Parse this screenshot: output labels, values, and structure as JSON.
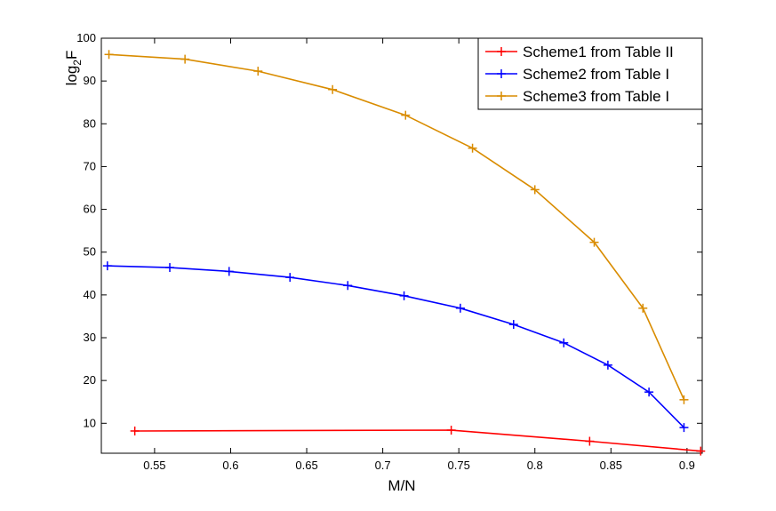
{
  "chart_data": {
    "type": "line",
    "title": "",
    "xlabel": "M/N",
    "ylabel_base": "log",
    "ylabel_sub": "2",
    "ylabel_var": "F",
    "xlim": [
      0.515,
      0.91
    ],
    "ylim": [
      3,
      100
    ],
    "xticks": [
      0.55,
      0.6,
      0.65,
      0.7,
      0.75,
      0.8,
      0.85,
      0.9
    ],
    "xtick_labels": [
      "0.55",
      "0.6",
      "0.65",
      "0.7",
      "0.75",
      "0.8",
      "0.85",
      "0.9"
    ],
    "yticks": [
      10,
      20,
      30,
      40,
      50,
      60,
      70,
      80,
      90,
      100
    ],
    "ytick_labels": [
      "10",
      "20",
      "30",
      "40",
      "50",
      "60",
      "70",
      "80",
      "90",
      "100"
    ],
    "grid": false,
    "legend_position": "top-right",
    "marker": "plus",
    "series": [
      {
        "name": "Scheme1 from Table II",
        "color": "#ff0000",
        "x": [
          0.537,
          0.745,
          0.836,
          0.909
        ],
        "y": [
          8.2,
          8.4,
          5.8,
          3.5
        ]
      },
      {
        "name": "Scheme2 from Table I",
        "color": "#0000ff",
        "x": [
          0.519,
          0.56,
          0.599,
          0.639,
          0.677,
          0.714,
          0.751,
          0.786,
          0.819,
          0.848,
          0.875,
          0.898
        ],
        "y": [
          46.8,
          46.4,
          45.5,
          44.1,
          42.2,
          39.8,
          36.9,
          33.1,
          28.8,
          23.6,
          17.3,
          9.0
        ]
      },
      {
        "name": "Scheme3 from Table I",
        "color": "#d98c00",
        "x": [
          0.52,
          0.57,
          0.618,
          0.667,
          0.715,
          0.759,
          0.8,
          0.839,
          0.871,
          0.898
        ],
        "y": [
          96.2,
          95.1,
          92.3,
          88.0,
          82.0,
          74.3,
          64.6,
          52.3,
          36.9,
          15.5
        ]
      }
    ]
  }
}
